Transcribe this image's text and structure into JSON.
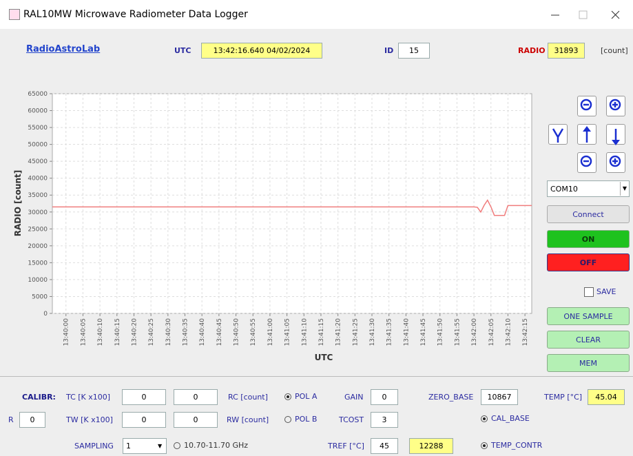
{
  "window": {
    "title": "RAL10MW Microwave Radiometer Data Logger"
  },
  "header": {
    "logo": "RadioAstroLab",
    "utc_label": "UTC",
    "utc_value": "13:42:16.640  04/02/2024",
    "id_label": "ID",
    "id_value": "15",
    "radio_label": "RADIO",
    "radio_value": "31893",
    "radio_unit": "[count]"
  },
  "chart_data": {
    "type": "line",
    "x_label": "UTC",
    "y_label": "RADIO [count]",
    "x": [
      "13:39:56",
      "13:42:00",
      "13:42:01",
      "13:42:02",
      "13:42:03",
      "13:42:04",
      "13:42:05",
      "13:42:06",
      "13:42:09",
      "13:42:10",
      "13:42:17"
    ],
    "series": [
      {
        "name": "RADIO",
        "color": "#f07c7c",
        "values": [
          31500,
          31500,
          31400,
          30000,
          32000,
          33500,
          31500,
          29000,
          29000,
          31900,
          31900
        ]
      }
    ],
    "xlim": [
      "13:39:56",
      "13:42:17"
    ],
    "xticks": [
      "13:40:00",
      "13:40:05",
      "13:40:10",
      "13:40:15",
      "13:40:20",
      "13:40:25",
      "13:40:30",
      "13:40:35",
      "13:40:40",
      "13:40:45",
      "13:40:50",
      "13:40:55",
      "13:41:00",
      "13:41:05",
      "13:41:10",
      "13:41:15",
      "13:41:20",
      "13:41:25",
      "13:41:30",
      "13:41:35",
      "13:41:40",
      "13:41:45",
      "13:41:50",
      "13:41:55",
      "13:42:00",
      "13:42:05",
      "13:42:10",
      "13:42:15"
    ],
    "ylim": [
      0,
      65000
    ],
    "yticks": [
      0,
      5000,
      10000,
      15000,
      20000,
      25000,
      30000,
      35000,
      40000,
      45000,
      50000,
      55000,
      60000,
      65000
    ],
    "grid": true
  },
  "controls": {
    "port": "COM10",
    "connect": "Connect",
    "on": "ON",
    "off": "OFF",
    "save": "SAVE",
    "one_sample": "ONE SAMPLE",
    "clear": "CLEAR",
    "mem": "MEM"
  },
  "calibration": {
    "calibr": "CALIBR:",
    "tc_label": "TC [K x100]",
    "tc_1": "0",
    "tc_2": "0",
    "rc_label": "RC [count]",
    "pol_a": "POL A",
    "gain_label": "GAIN",
    "gain": "0",
    "zero_base_label": "ZERO_BASE",
    "zero_base": "10867",
    "temp_label": "TEMP [°C]",
    "temp": "45.04",
    "r_label": "R",
    "r": "0",
    "tw_label": "TW [K x100]",
    "tw_1": "0",
    "tw_2": "0",
    "rw_label": "RW [count]",
    "pol_b": "POL B",
    "tcost_label": "TCOST",
    "tcost": "3",
    "cal_base": "CAL_BASE",
    "sampling_label": "SAMPLING",
    "sampling": "1",
    "freq": "10.70-11.70 GHz",
    "tref_label": "TREF [°C]",
    "tref": "45",
    "tref_count": "12288",
    "temp_contr": "TEMP_CONTR"
  }
}
